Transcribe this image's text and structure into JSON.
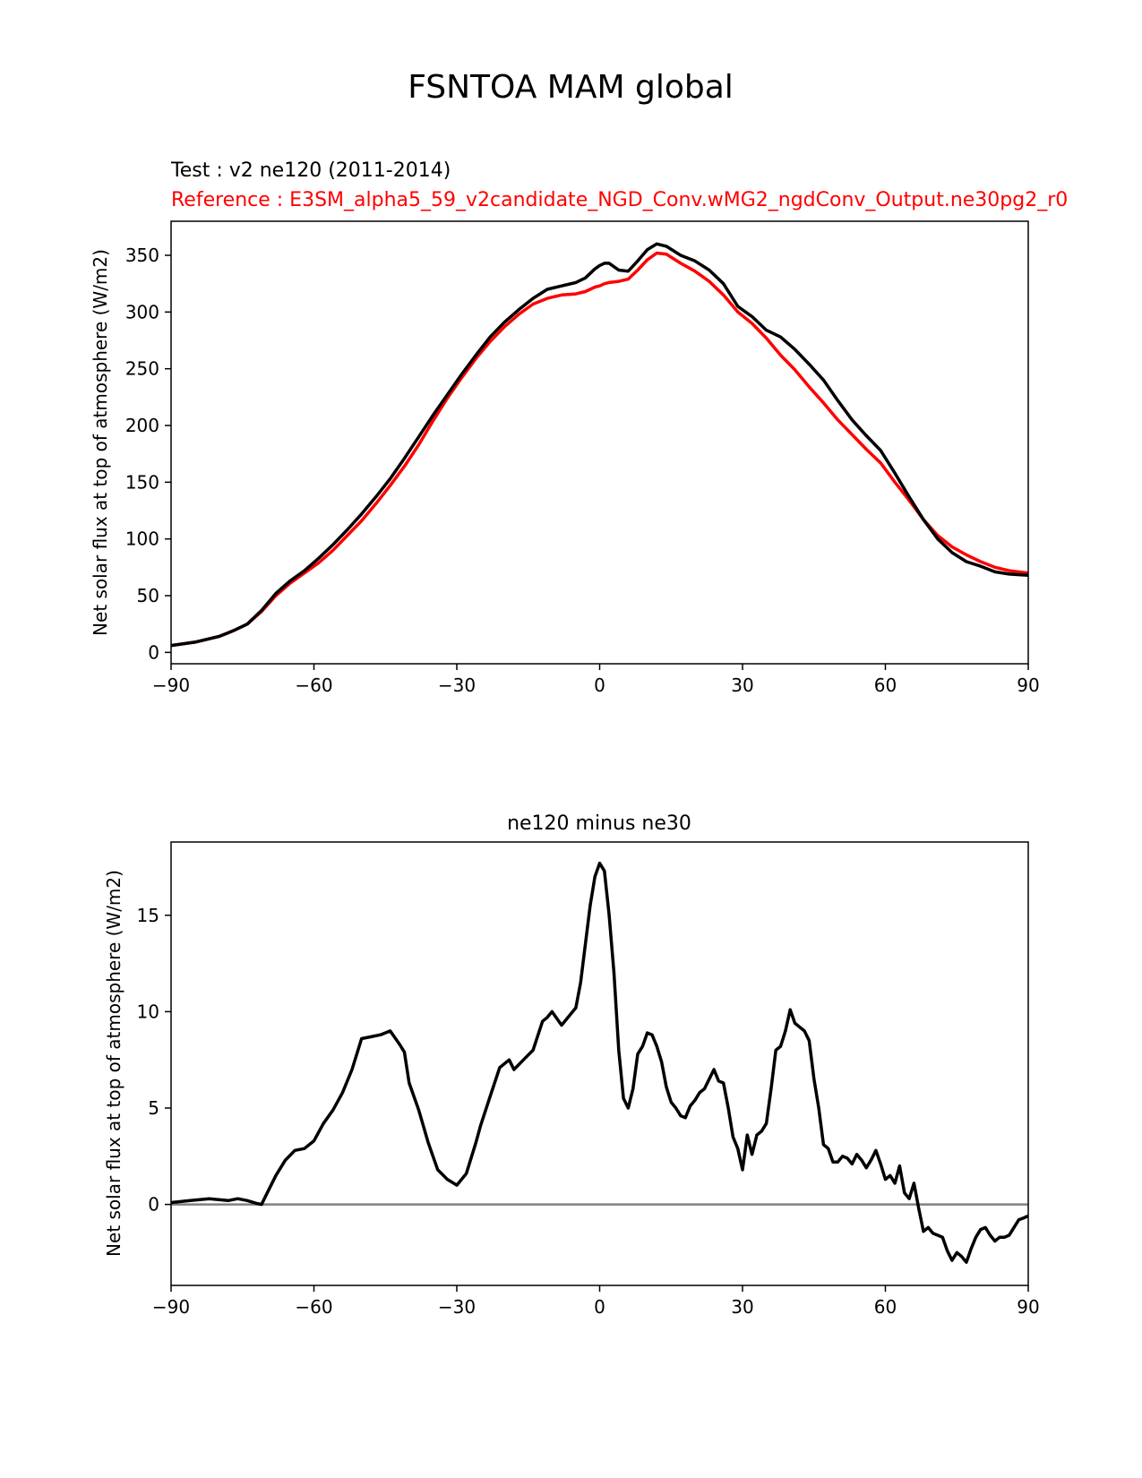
{
  "figure": {
    "title": "FSNTOA MAM global",
    "test_label": "Test : v2 ne120 (2011-2014)",
    "reference_label": "Reference : E3SM_alpha5_59_v2candidate_NGD_Conv.wMG2_ngdConv_Output.ne30pg2_r0"
  },
  "colors": {
    "test": "#000000",
    "reference": "#ff0000",
    "zero_line": "#808080"
  },
  "chart_data": [
    {
      "type": "line",
      "title": "",
      "xlabel": "",
      "ylabel": "Net solar flux at top of atmosphere (W/m2)",
      "xlim": [
        -90,
        90
      ],
      "ylim": [
        -10,
        380
      ],
      "xticks": [
        -90,
        -60,
        -30,
        0,
        30,
        60,
        90
      ],
      "xtick_labels": [
        "−90",
        "−60",
        "−30",
        "0",
        "30",
        "60",
        "90"
      ],
      "yticks": [
        0,
        50,
        100,
        150,
        200,
        250,
        300,
        350
      ],
      "ytick_labels": [
        "0",
        "50",
        "100",
        "150",
        "200",
        "250",
        "300",
        "350"
      ],
      "series": [
        {
          "name": "Test : v2 ne120 (2011-2014)",
          "color": "#000000",
          "x": [
            -90,
            -85,
            -80,
            -77,
            -74,
            -71,
            -68,
            -65,
            -62,
            -59,
            -56,
            -53,
            -50,
            -47,
            -44,
            -41,
            -38,
            -35,
            -32,
            -29,
            -26,
            -23,
            -20,
            -17,
            -14,
            -11,
            -8,
            -5,
            -3,
            -1,
            0,
            1,
            2,
            4,
            6,
            8,
            10,
            12,
            14,
            17,
            20,
            23,
            26,
            29,
            32,
            35,
            38,
            41,
            44,
            47,
            50,
            53,
            56,
            59,
            62,
            65,
            68,
            71,
            74,
            77,
            80,
            83,
            86,
            90
          ],
          "y": [
            6,
            9,
            14,
            19,
            25,
            37,
            52,
            63,
            72,
            83,
            95,
            108,
            122,
            137,
            153,
            171,
            190,
            209,
            227,
            245,
            262,
            278,
            291,
            302,
            312,
            320,
            323,
            326,
            330,
            338,
            341,
            343,
            343,
            337,
            336,
            345,
            355,
            360,
            358,
            350,
            345,
            337,
            325,
            305,
            296,
            284,
            278,
            267,
            254,
            240,
            222,
            205,
            191,
            178,
            158,
            137,
            117,
            100,
            88,
            80,
            76,
            71,
            69,
            68
          ]
        },
        {
          "name": "Reference : E3SM_alpha5_59_v2candidate_NGD_Conv.wMG2_ngdConv_Output.ne30pg2_r0",
          "color": "#ff0000",
          "x": [
            -90,
            -85,
            -80,
            -77,
            -74,
            -71,
            -68,
            -65,
            -62,
            -59,
            -56,
            -53,
            -50,
            -47,
            -44,
            -41,
            -38,
            -35,
            -32,
            -29,
            -26,
            -23,
            -20,
            -17,
            -14,
            -11,
            -8,
            -5,
            -3,
            -1,
            0,
            1,
            2,
            4,
            6,
            8,
            10,
            12,
            14,
            17,
            20,
            23,
            26,
            29,
            32,
            35,
            38,
            41,
            44,
            47,
            50,
            53,
            56,
            59,
            62,
            65,
            68,
            71,
            74,
            77,
            80,
            83,
            86,
            90
          ],
          "y": [
            6,
            9,
            14,
            19,
            25,
            36,
            50,
            61,
            70,
            79,
            90,
            103,
            116,
            131,
            147,
            164,
            183,
            204,
            224,
            242,
            259,
            274,
            287,
            298,
            307,
            312,
            315,
            316,
            318,
            322,
            323,
            325,
            326,
            327,
            329,
            337,
            346,
            352,
            351,
            343,
            336,
            327,
            315,
            300,
            290,
            277,
            262,
            249,
            234,
            220,
            205,
            192,
            179,
            167,
            150,
            134,
            117,
            103,
            93,
            86,
            80,
            75,
            72,
            70
          ]
        }
      ]
    },
    {
      "type": "line",
      "title": "ne120 minus ne30",
      "xlabel": "",
      "ylabel": "Net solar flux at top of atmosphere (W/m2)",
      "xlim": [
        -90,
        90
      ],
      "ylim": [
        -4.2,
        18.8
      ],
      "xticks": [
        -90,
        -60,
        -30,
        0,
        30,
        60,
        90
      ],
      "xtick_labels": [
        "−90",
        "−60",
        "−30",
        "0",
        "30",
        "60",
        "90"
      ],
      "yticks": [
        0,
        5,
        10,
        15
      ],
      "ytick_labels": [
        "0",
        "5",
        "10",
        "15"
      ],
      "reference_line_y": 0,
      "series": [
        {
          "name": "ne120 minus ne30",
          "color": "#000000",
          "x": [
            -90,
            -88,
            -86,
            -84,
            -82,
            -80,
            -78,
            -76,
            -74,
            -72,
            -71,
            -70,
            -68,
            -66,
            -64,
            -62,
            -60,
            -58,
            -56,
            -54,
            -52,
            -50,
            -48,
            -46,
            -44,
            -42,
            -41,
            -40,
            -38,
            -36,
            -34,
            -32,
            -30,
            -28,
            -26,
            -25,
            -23,
            -21,
            -19,
            -18,
            -16,
            -14,
            -12,
            -11,
            -10,
            -8,
            -6,
            -5,
            -4,
            -2,
            -1,
            0,
            1,
            2,
            3,
            4,
            5,
            6,
            7,
            8,
            9,
            10,
            11,
            12,
            13,
            14,
            15,
            16,
            17,
            18,
            19,
            20,
            21,
            22,
            23,
            24,
            25,
            26,
            27,
            28,
            29,
            30,
            31,
            32,
            33,
            34,
            35,
            36,
            37,
            38,
            39,
            40,
            41,
            42,
            43,
            44,
            45,
            46,
            47,
            48,
            49,
            50,
            51,
            52,
            53,
            54,
            55,
            56,
            57,
            58,
            59,
            60,
            61,
            62,
            63,
            64,
            65,
            66,
            67,
            68,
            69,
            70,
            71,
            72,
            73,
            74,
            75,
            76,
            77,
            78,
            79,
            80,
            81,
            82,
            83,
            84,
            85,
            86,
            87,
            88,
            89,
            90
          ],
          "y": [
            0.1,
            0.15,
            0.2,
            0.25,
            0.3,
            0.25,
            0.2,
            0.3,
            0.2,
            0.05,
            0.0,
            0.5,
            1.5,
            2.3,
            2.8,
            2.9,
            3.3,
            4.2,
            4.9,
            5.8,
            7.0,
            8.6,
            8.7,
            8.8,
            9.0,
            8.3,
            7.9,
            6.3,
            4.9,
            3.2,
            1.8,
            1.3,
            1.0,
            1.6,
            3.2,
            4.1,
            5.6,
            7.1,
            7.5,
            7.0,
            7.5,
            8.0,
            9.5,
            9.7,
            10.0,
            9.3,
            9.9,
            10.2,
            11.5,
            15.5,
            17.0,
            17.7,
            17.3,
            15.0,
            12.0,
            8.0,
            5.5,
            5.0,
            6.0,
            7.8,
            8.2,
            8.9,
            8.8,
            8.2,
            7.4,
            6.1,
            5.3,
            5.0,
            4.6,
            4.5,
            5.1,
            5.4,
            5.8,
            6.0,
            6.5,
            7.0,
            6.4,
            6.3,
            5.0,
            3.5,
            2.9,
            1.8,
            3.6,
            2.6,
            3.6,
            3.8,
            4.2,
            6.0,
            8.0,
            8.2,
            9.0,
            10.1,
            9.4,
            9.2,
            9.0,
            8.5,
            6.5,
            5.0,
            3.1,
            2.9,
            2.2,
            2.2,
            2.5,
            2.4,
            2.1,
            2.6,
            2.3,
            1.9,
            2.3,
            2.8,
            2.1,
            1.3,
            1.5,
            1.1,
            2.0,
            0.6,
            0.3,
            1.1,
            -0.2,
            -1.4,
            -1.2,
            -1.5,
            -1.6,
            -1.7,
            -2.4,
            -2.9,
            -2.5,
            -2.7,
            -3.0,
            -2.3,
            -1.7,
            -1.3,
            -1.2,
            -1.6,
            -1.9,
            -1.7,
            -1.7,
            -1.6,
            -1.2,
            -0.8,
            -0.7,
            -0.6
          ]
        }
      ]
    }
  ]
}
